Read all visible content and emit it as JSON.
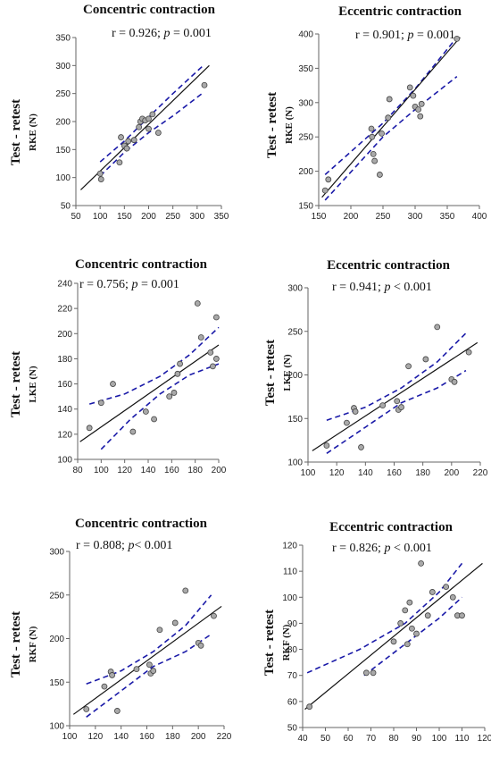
{
  "chart_data": [
    {
      "type": "scatter",
      "title": "Concentric contraction",
      "annotation": {
        "r": "r = 0.926; ",
        "p_label": "p",
        "p_value": " = 0.001"
      },
      "ylabel_outer": "Test - retest",
      "ylabel": "RKE (N)",
      "xlim": [
        50,
        350
      ],
      "ylim": [
        50,
        350
      ],
      "xticks": [
        50,
        100,
        150,
        200,
        250,
        300,
        350
      ],
      "yticks": [
        50,
        100,
        150,
        200,
        250,
        300,
        350
      ],
      "points": [
        [
          100,
          107
        ],
        [
          102,
          97
        ],
        [
          140,
          127
        ],
        [
          143,
          172
        ],
        [
          150,
          157
        ],
        [
          155,
          152
        ],
        [
          158,
          165
        ],
        [
          170,
          167
        ],
        [
          180,
          190
        ],
        [
          183,
          200
        ],
        [
          187,
          205
        ],
        [
          193,
          202
        ],
        [
          200,
          205
        ],
        [
          200,
          187
        ],
        [
          208,
          213
        ],
        [
          220,
          180
        ],
        [
          315,
          265
        ]
      ],
      "regression": [
        [
          60,
          78
        ],
        [
          325,
          300
        ]
      ],
      "ci_upper": [
        [
          100,
          128
        ],
        [
          150,
          165
        ],
        [
          200,
          208
        ],
        [
          250,
          250
        ],
        [
          310,
          298
        ]
      ],
      "ci_lower": [
        [
          100,
          103
        ],
        [
          150,
          145
        ],
        [
          200,
          180
        ],
        [
          250,
          210
        ],
        [
          310,
          250
        ]
      ]
    },
    {
      "type": "scatter",
      "title": "Eccentric contraction",
      "annotation": {
        "r": "r = 0.901; ",
        "p_label": "p",
        "p_value": " = 0.001"
      },
      "ylabel_outer": "Test - retest",
      "ylabel": "RKE (N)",
      "xlim": [
        150,
        400
      ],
      "ylim": [
        150,
        400
      ],
      "xticks": [
        150,
        200,
        250,
        300,
        350,
        400
      ],
      "yticks": [
        150,
        200,
        250,
        300,
        350,
        400
      ],
      "points": [
        [
          160,
          172
        ],
        [
          165,
          188
        ],
        [
          232,
          262
        ],
        [
          233,
          250
        ],
        [
          235,
          225
        ],
        [
          237,
          215
        ],
        [
          245,
          195
        ],
        [
          248,
          255
        ],
        [
          258,
          278
        ],
        [
          260,
          305
        ],
        [
          292,
          322
        ],
        [
          297,
          310
        ],
        [
          300,
          294
        ],
        [
          305,
          290
        ],
        [
          308,
          280
        ],
        [
          310,
          298
        ],
        [
          365,
          393
        ]
      ],
      "regression": [
        [
          155,
          162
        ],
        [
          370,
          395
        ]
      ],
      "ci_upper": [
        [
          160,
          195
        ],
        [
          250,
          270
        ],
        [
          300,
          320
        ],
        [
          365,
          395
        ]
      ],
      "ci_lower": [
        [
          160,
          158
        ],
        [
          250,
          250
        ],
        [
          300,
          290
        ],
        [
          365,
          338
        ]
      ]
    },
    {
      "type": "scatter",
      "title": "Concentric contraction",
      "annotation": {
        "r": "r = 0.756; ",
        "p_label": "p",
        "p_value": " = 0.001"
      },
      "ylabel_outer": "Test - retest",
      "ylabel": "LKE (N)",
      "xlim": [
        80,
        200
      ],
      "ylim": [
        100,
        240
      ],
      "xticks": [
        80,
        100,
        120,
        140,
        160,
        180,
        200
      ],
      "yticks": [
        100,
        120,
        140,
        160,
        180,
        200,
        220,
        240
      ],
      "points": [
        [
          90,
          125
        ],
        [
          100,
          145
        ],
        [
          110,
          160
        ],
        [
          127,
          122
        ],
        [
          138,
          138
        ],
        [
          145,
          132
        ],
        [
          158,
          150
        ],
        [
          162,
          153
        ],
        [
          165,
          168
        ],
        [
          167,
          176
        ],
        [
          182,
          224
        ],
        [
          185,
          197
        ],
        [
          193,
          185
        ],
        [
          195,
          174
        ],
        [
          198,
          180
        ],
        [
          198,
          213
        ]
      ],
      "regression": [
        [
          82,
          114
        ],
        [
          200,
          191
        ]
      ],
      "ci_upper": [
        [
          90,
          144
        ],
        [
          120,
          152
        ],
        [
          150,
          166
        ],
        [
          175,
          183
        ],
        [
          200,
          205
        ]
      ],
      "ci_lower": [
        [
          100,
          108
        ],
        [
          125,
          132
        ],
        [
          150,
          152
        ],
        [
          175,
          167
        ],
        [
          200,
          176
        ]
      ]
    },
    {
      "type": "scatter",
      "title": "Eccentric contraction",
      "annotation": {
        "r": "r = 0.941; ",
        "p_label": "p",
        "p_value": " < 0.001"
      },
      "ylabel_outer": "Test - retest",
      "ylabel": "LKE (N)",
      "xlim": [
        100,
        220
      ],
      "ylim": [
        100,
        300
      ],
      "xticks": [
        100,
        120,
        140,
        160,
        180,
        200,
        220
      ],
      "yticks": [
        100,
        150,
        200,
        250,
        300
      ],
      "points": [
        [
          113,
          119
        ],
        [
          127,
          145
        ],
        [
          132,
          162
        ],
        [
          133,
          158
        ],
        [
          137,
          117
        ],
        [
          152,
          165
        ],
        [
          162,
          170
        ],
        [
          163,
          160
        ],
        [
          165,
          163
        ],
        [
          170,
          210
        ],
        [
          182,
          218
        ],
        [
          190,
          255
        ],
        [
          200,
          195
        ],
        [
          202,
          192
        ],
        [
          212,
          226
        ]
      ],
      "regression": [
        [
          103,
          113
        ],
        [
          218,
          237
        ]
      ],
      "ci_upper": [
        [
          113,
          148
        ],
        [
          140,
          163
        ],
        [
          165,
          185
        ],
        [
          190,
          215
        ],
        [
          210,
          248
        ]
      ],
      "ci_lower": [
        [
          113,
          110
        ],
        [
          140,
          140
        ],
        [
          165,
          168
        ],
        [
          190,
          185
        ],
        [
          210,
          205
        ]
      ]
    },
    {
      "type": "scatter",
      "title": "Concentric contraction",
      "annotation": {
        "r": "r = 0.808; ",
        "p_label": "p",
        "p_value": "< 0.001"
      },
      "ylabel_outer": "Test - retest",
      "ylabel": "RKF (N)",
      "xlim": [
        100,
        220
      ],
      "ylim": [
        100,
        300
      ],
      "xticks": [
        100,
        120,
        140,
        160,
        180,
        200,
        220
      ],
      "yticks": [
        100,
        150,
        200,
        250,
        300
      ],
      "points": [
        [
          113,
          119
        ],
        [
          127,
          145
        ],
        [
          132,
          162
        ],
        [
          133,
          158
        ],
        [
          137,
          117
        ],
        [
          152,
          165
        ],
        [
          162,
          170
        ],
        [
          163,
          160
        ],
        [
          165,
          163
        ],
        [
          170,
          210
        ],
        [
          182,
          218
        ],
        [
          190,
          255
        ],
        [
          200,
          195
        ],
        [
          202,
          192
        ],
        [
          212,
          226
        ]
      ],
      "regression": [
        [
          103,
          113
        ],
        [
          218,
          237
        ]
      ],
      "ci_upper": [
        [
          113,
          148
        ],
        [
          140,
          163
        ],
        [
          165,
          185
        ],
        [
          190,
          215
        ],
        [
          210,
          250
        ]
      ],
      "ci_lower": [
        [
          113,
          110
        ],
        [
          140,
          140
        ],
        [
          165,
          168
        ],
        [
          190,
          185
        ],
        [
          210,
          205
        ]
      ]
    },
    {
      "type": "scatter",
      "title": "Eccentric contraction",
      "annotation": {
        "r": "r = 0.826; ",
        "p_label": "p",
        "p_value": " < 0.001"
      },
      "ylabel_outer": "Test - retest",
      "ylabel": "RKF (N)",
      "xlim": [
        40,
        120
      ],
      "ylim": [
        50,
        120
      ],
      "xticks": [
        40,
        50,
        60,
        70,
        80,
        90,
        100,
        110,
        120
      ],
      "yticks": [
        50,
        60,
        70,
        80,
        90,
        100,
        110,
        120
      ],
      "points": [
        [
          43,
          58
        ],
        [
          68,
          71
        ],
        [
          71,
          71
        ],
        [
          80,
          83
        ],
        [
          83,
          90
        ],
        [
          85,
          95
        ],
        [
          86,
          82
        ],
        [
          87,
          98
        ],
        [
          88,
          88
        ],
        [
          90,
          86
        ],
        [
          92,
          113
        ],
        [
          95,
          93
        ],
        [
          97,
          102
        ],
        [
          103,
          104
        ],
        [
          106,
          100
        ],
        [
          108,
          93
        ],
        [
          110,
          93
        ]
      ],
      "regression": [
        [
          41,
          57
        ],
        [
          119,
          113
        ]
      ],
      "ci_upper": [
        [
          42,
          71
        ],
        [
          65,
          80
        ],
        [
          85,
          90
        ],
        [
          100,
          102
        ],
        [
          110,
          113
        ]
      ],
      "ci_lower": [
        [
          67,
          70
        ],
        [
          85,
          82
        ],
        [
          100,
          92
        ],
        [
          110,
          100
        ]
      ]
    }
  ]
}
